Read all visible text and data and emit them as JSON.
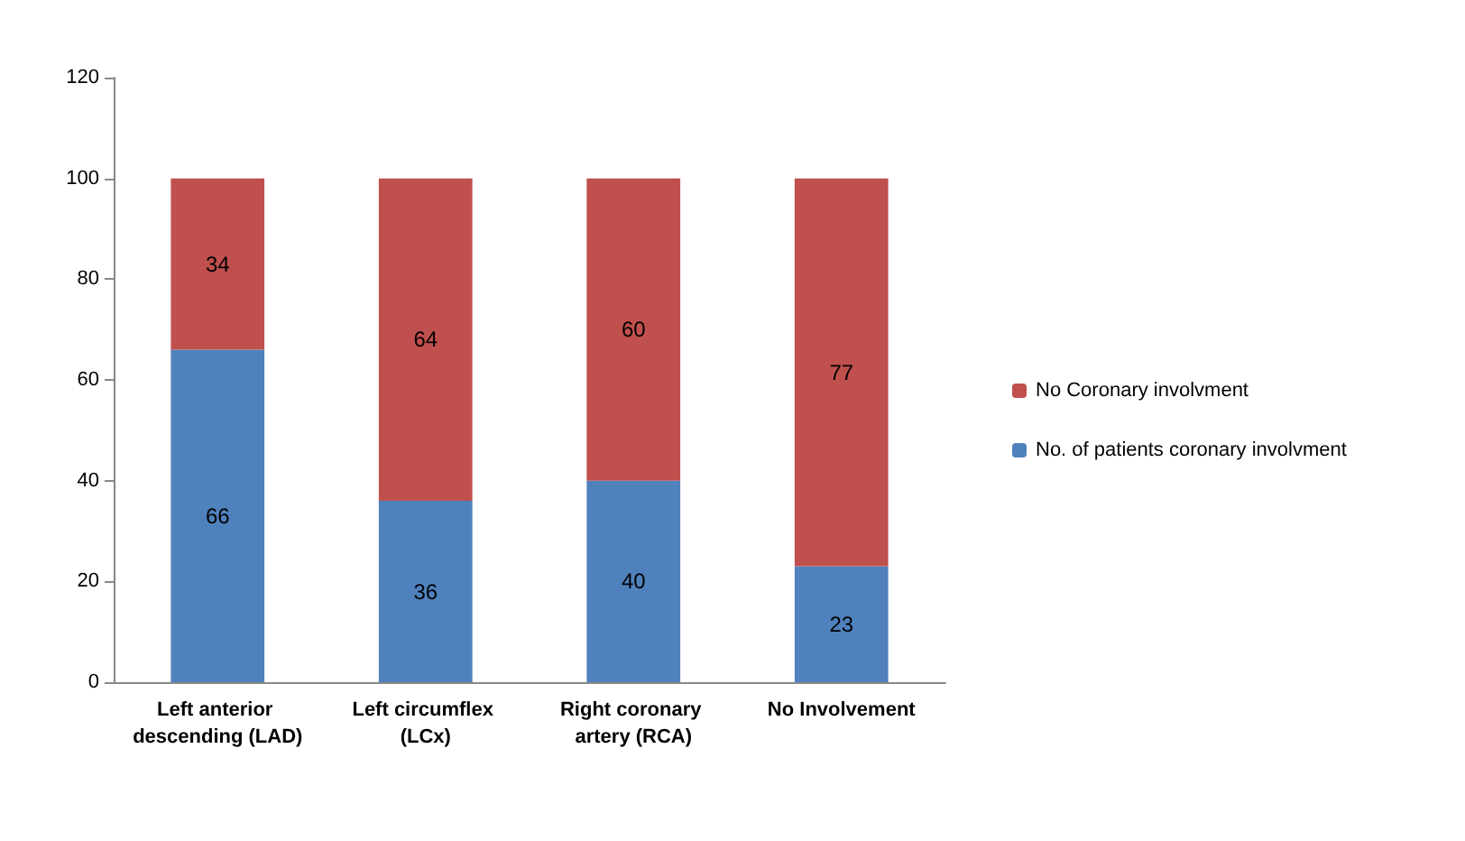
{
  "chart_data": {
    "type": "bar",
    "stacked": true,
    "categories": [
      "Left anterior descending (LAD)",
      "Left circumflex (LCx)",
      "Right coronary artery (RCA)",
      "No Involvement"
    ],
    "series": [
      {
        "name": "No. of patients coronary involvment",
        "color": "#4f81bd",
        "values": [
          66,
          36,
          40,
          23
        ]
      },
      {
        "name": "No Coronary involvment",
        "color": "#c0504d",
        "values": [
          34,
          64,
          60,
          77
        ]
      }
    ],
    "ylim": [
      0,
      120
    ],
    "yticks": [
      0,
      20,
      40,
      60,
      80,
      100,
      120
    ],
    "grid": false,
    "legend": "right",
    "data_labels": true
  }
}
